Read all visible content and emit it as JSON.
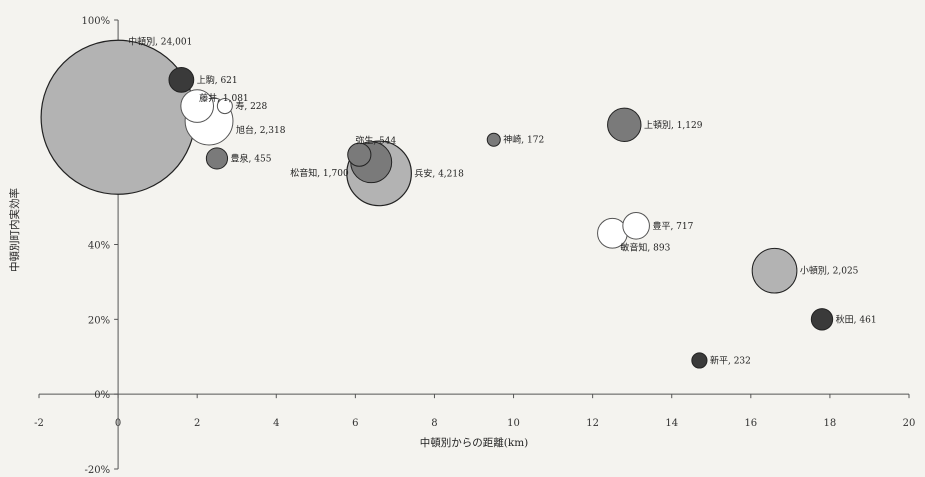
{
  "chart_data": {
    "type": "bubble",
    "title": "",
    "xlabel": "中頓別からの距離(km)",
    "ylabel": "中頓別町内実効率",
    "xlim": [
      -2,
      20
    ],
    "ylim": [
      -20,
      100
    ],
    "x_ticks": [
      "-2",
      "0",
      "2",
      "4",
      "6",
      "8",
      "10",
      "12",
      "14",
      "16",
      "18",
      "20"
    ],
    "y_ticks": [
      "100%",
      "80%",
      "60%",
      "40%",
      "20%",
      "0%",
      "-20%"
    ],
    "grid": false,
    "colors": {
      "large_gray": "#b3b3b3",
      "dark": "#3a3a3a",
      "mid_gray": "#7a7a7a",
      "white": "#ffffff"
    },
    "points": [
      {
        "label": "中頓別, 24,001",
        "x": 0.0,
        "y": 74,
        "size": 24001,
        "color": "large_gray"
      },
      {
        "label": "上駒, 621",
        "x": 1.6,
        "y": 84,
        "size": 621,
        "color": "dark"
      },
      {
        "label": "藤井, 1,081",
        "x": 2.0,
        "y": 77,
        "size": 1081,
        "color": "white"
      },
      {
        "label": "寿, 228",
        "x": 2.7,
        "y": 77,
        "size": 228,
        "color": "white"
      },
      {
        "label": "旭台, 2,318",
        "x": 2.3,
        "y": 73,
        "size": 2318,
        "color": "white"
      },
      {
        "label": "豊泉, 455",
        "x": 2.5,
        "y": 63,
        "size": 455,
        "color": "mid_gray"
      },
      {
        "label": "弥生, 544",
        "x": 6.1,
        "y": 64,
        "size": 544,
        "color": "mid_gray"
      },
      {
        "label": "松音知, 1,700",
        "x": 6.4,
        "y": 62,
        "size": 1700,
        "color": "mid_gray"
      },
      {
        "label": "兵安, 4,218",
        "x": 6.6,
        "y": 59,
        "size": 4218,
        "color": "large_gray"
      },
      {
        "label": "神崎, 172",
        "x": 9.5,
        "y": 68,
        "size": 172,
        "color": "mid_gray"
      },
      {
        "label": "上頓別, 1,129",
        "x": 12.8,
        "y": 72,
        "size": 1129,
        "color": "mid_gray"
      },
      {
        "label": "豊平, 717",
        "x": 13.1,
        "y": 45,
        "size": 717,
        "color": "white"
      },
      {
        "label": "敏音知, 893",
        "x": 12.5,
        "y": 43,
        "size": 893,
        "color": "white"
      },
      {
        "label": "小頓別, 2,025",
        "x": 16.6,
        "y": 33,
        "size": 2025,
        "color": "large_gray"
      },
      {
        "label": "秋田, 461",
        "x": 17.8,
        "y": 20,
        "size": 461,
        "color": "dark"
      },
      {
        "label": "新平, 232",
        "x": 14.7,
        "y": 9,
        "size": 232,
        "color": "dark"
      }
    ]
  }
}
